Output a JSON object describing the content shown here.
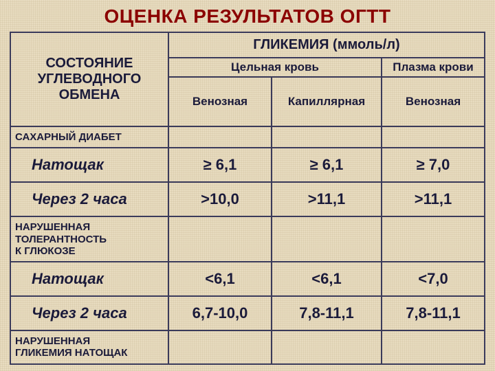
{
  "title": "ОЦЕНКА РЕЗУЛЬТАТОВ ОГТТ",
  "header": {
    "state": "СОСТОЯНИЕ УГЛЕВОДНОГО ОБМЕНА",
    "glycemia": "ГЛИКЕМИЯ (ммоль/л)",
    "whole_blood": "Цельная кровь",
    "plasma": "Плазма крови",
    "venous": "Венозная",
    "capillary": "Капиллярная",
    "venous2": "Венозная"
  },
  "sections": {
    "diabetes": "САХАРНЫЙ ДИАБЕТ",
    "igt": "НАРУШЕННАЯ ТОЛЕРАНТНОСТЬ\n      К ГЛЮКОЗЕ",
    "ifg": "НАРУШЕННАЯ\nГЛИКЕМИЯ НАТОЩАК"
  },
  "rows": {
    "fasting": "Натощак",
    "after2h": "Через 2 часа"
  },
  "values": {
    "dm_fasting": {
      "v": "≥ 6,1",
      "c": "≥ 6,1",
      "p": "≥ 7,0"
    },
    "dm_2h": {
      "v": ">10,0",
      "c": ">11,1",
      "p": ">11,1"
    },
    "igt_fasting": {
      "v": "<6,1",
      "c": "<6,1",
      "p": "<7,0"
    },
    "igt_2h": {
      "v": "6,7-10,0",
      "c": "7,8-11,1",
      "p": "7,8-11,1"
    }
  },
  "style": {
    "title_color": "#8b0000",
    "border_color": "#3a3a5a",
    "text_color": "#1a1a3a",
    "background": "#e8dcc0",
    "title_fontsize": 28,
    "header_fontsize": 20,
    "sub_fontsize": 17,
    "section_fontsize": 15,
    "value_fontsize": 22
  }
}
